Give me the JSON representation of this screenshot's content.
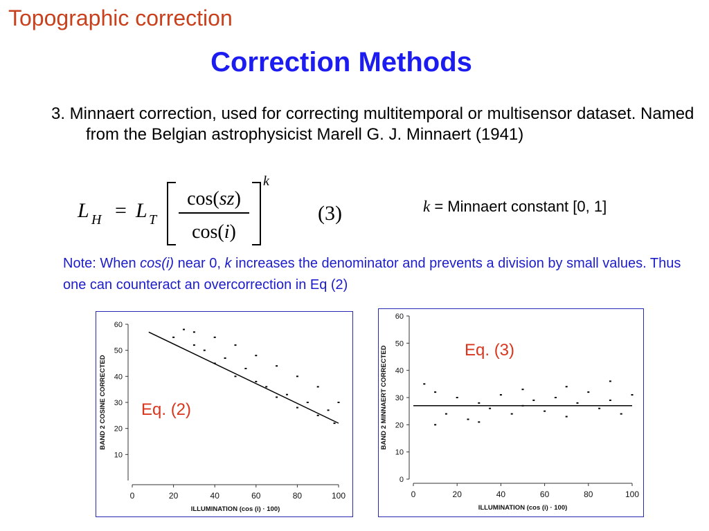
{
  "slide": {
    "topic": "Topographic correction",
    "heading": "Correction Methods",
    "point": "3. Minnaert correction, used for correcting multitemporal or multisensor dataset. Named from the Belgian astrophysicist Marell G. J. Minnaert (1941)",
    "formula": {
      "lhs": "L",
      "lhs_sub": "H",
      "equals": "=",
      "rhs": "L",
      "rhs_sub": "T",
      "numerator_pre": "cos(",
      "numerator_var": "sz",
      "numerator_post": ")",
      "denominator_pre": "cos(",
      "denominator_var": "i",
      "denominator_post": ")",
      "exponent": "k"
    },
    "equation_number": "(3)",
    "k_definition": {
      "symbol": "k",
      "text": " = Minnaert constant [0, 1]"
    },
    "note": {
      "part1": "Note: When ",
      "cos_term": "cos(i)",
      "part2": " near 0, ",
      "k_term": "k",
      "part3": " increases the denominator and prevents a division by small values.  Thus one can counteract an overcorrection in Eq (2)"
    },
    "colors": {
      "topic": "#c8401c",
      "heading": "#1c1cf0",
      "note": "#1c1cc8",
      "eq_label": "#d8361e",
      "panel_border": "#2828b4"
    }
  },
  "chart_data": [
    {
      "type": "scatter",
      "title": "",
      "label": "Eq. (2)",
      "xlabel": "ILLUMINATION   (cos (i) · 100)",
      "ylabel": "BAND 2 COSINE CORRECTED",
      "xlim": [
        0,
        100
      ],
      "ylim": [
        0,
        60
      ],
      "xticks": [
        0,
        20,
        40,
        60,
        80,
        100
      ],
      "yticks": [
        10,
        20,
        30,
        40,
        50,
        60
      ],
      "x_tick_labels": [
        "0",
        "20",
        "40",
        "60",
        "80",
        "100"
      ],
      "y_tick_labels": [
        "10",
        "20",
        "30",
        "40",
        "50",
        "60"
      ],
      "fit_line": {
        "x": [
          8,
          100
        ],
        "y": [
          57,
          22
        ]
      },
      "series": [
        {
          "x": [
            20,
            25,
            30,
            30,
            35,
            40,
            40,
            45,
            50,
            50,
            55,
            60,
            60,
            65,
            70,
            70,
            75,
            80,
            80,
            85,
            90,
            90,
            95,
            98,
            100
          ],
          "y": [
            55,
            58,
            52,
            57,
            50,
            45,
            55,
            47,
            40,
            52,
            43,
            38,
            48,
            36,
            32,
            44,
            33,
            28,
            40,
            30,
            25,
            36,
            27,
            22,
            30
          ]
        }
      ]
    },
    {
      "type": "scatter",
      "title": "",
      "label": "Eq. (3)",
      "xlabel": "ILLUMINATION   (cos (i) · 100)",
      "ylabel": "BAND 2 MINNAERT CORRECTED",
      "xlim": [
        0,
        100
      ],
      "ylim": [
        0,
        60
      ],
      "xticks": [
        0,
        20,
        40,
        60,
        80,
        100
      ],
      "yticks": [
        0,
        10,
        20,
        30,
        40,
        50,
        60
      ],
      "x_tick_labels": [
        "0",
        "20",
        "40",
        "60",
        "80",
        "100"
      ],
      "y_tick_labels": [
        "0",
        "10",
        "20",
        "30",
        "40",
        "50",
        "60"
      ],
      "fit_line": {
        "x": [
          0,
          100
        ],
        "y": [
          27,
          27
        ]
      },
      "series": [
        {
          "x": [
            5,
            10,
            15,
            20,
            25,
            30,
            35,
            40,
            45,
            50,
            55,
            60,
            65,
            70,
            75,
            80,
            85,
            90,
            95,
            100,
            10,
            30,
            50,
            70,
            90
          ],
          "y": [
            35,
            32,
            24,
            30,
            22,
            28,
            26,
            31,
            24,
            27,
            29,
            25,
            30,
            23,
            28,
            32,
            26,
            29,
            24,
            31,
            20,
            21,
            33,
            34,
            36
          ]
        }
      ]
    }
  ]
}
